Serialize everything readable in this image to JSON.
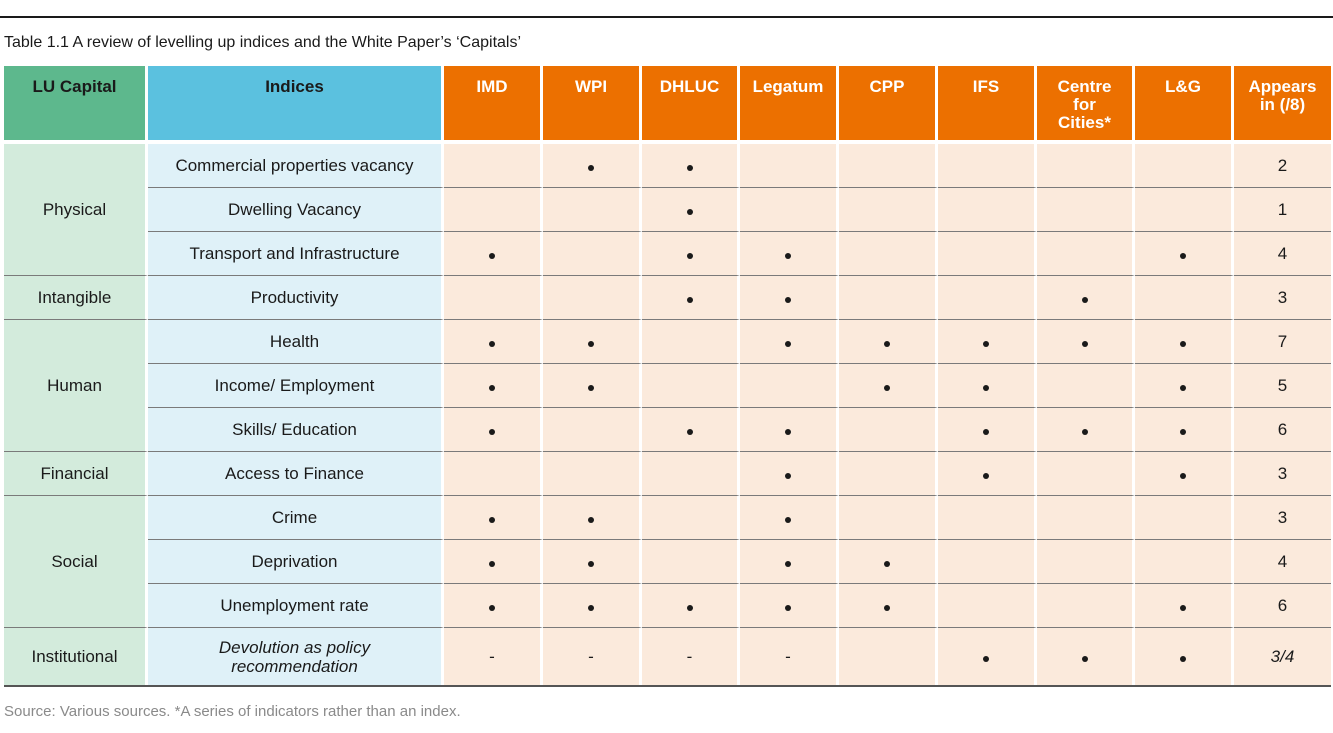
{
  "title": "Table 1.1 A review of levelling up indices and the White Paper’s ‘Capitals’",
  "headers": {
    "capital": "LU Capital",
    "indices": "Indices",
    "sources": [
      "IMD",
      "WPI",
      "DHLUC",
      "Legatum",
      "CPP",
      "IFS",
      "Centre for Cities*",
      "L&G"
    ],
    "appears": "Appears in (/8)"
  },
  "groups": [
    {
      "capital": "Physical",
      "rows": [
        {
          "index": "Commercial properties vacancy",
          "marks": [
            "",
            "•",
            "•",
            "",
            "",
            "",
            "",
            ""
          ],
          "count": "2"
        },
        {
          "index": "Dwelling Vacancy",
          "marks": [
            "",
            "",
            "•",
            "",
            "",
            "",
            "",
            ""
          ],
          "count": "1"
        },
        {
          "index": "Transport and Infrastructure",
          "marks": [
            "•",
            "",
            "•",
            "•",
            "",
            "",
            "",
            "•"
          ],
          "count": "4"
        }
      ]
    },
    {
      "capital": "Intangible",
      "rows": [
        {
          "index": "Productivity",
          "marks": [
            "",
            "",
            "•",
            "•",
            "",
            "",
            "•",
            ""
          ],
          "count": "3"
        }
      ]
    },
    {
      "capital": "Human",
      "rows": [
        {
          "index": "Health",
          "marks": [
            "•",
            "•",
            "",
            "•",
            "•",
            "•",
            "•",
            "•"
          ],
          "count": "7"
        },
        {
          "index": "Income/ Employment",
          "marks": [
            "•",
            "•",
            "",
            "",
            "•",
            "•",
            "",
            "•"
          ],
          "count": "5"
        },
        {
          "index": "Skills/ Education",
          "marks": [
            "•",
            "",
            "•",
            "•",
            "",
            "•",
            "•",
            "•"
          ],
          "count": "6"
        }
      ]
    },
    {
      "capital": "Financial",
      "rows": [
        {
          "index": "Access to Finance",
          "marks": [
            "",
            "",
            "",
            "•",
            "",
            "•",
            "",
            "•"
          ],
          "count": "3"
        }
      ]
    },
    {
      "capital": "Social",
      "rows": [
        {
          "index": "Crime",
          "marks": [
            "•",
            "•",
            "",
            "•",
            "",
            "",
            "",
            ""
          ],
          "count": "3"
        },
        {
          "index": "Deprivation",
          "marks": [
            "•",
            "•",
            "",
            "•",
            "•",
            "",
            "",
            ""
          ],
          "count": "4"
        },
        {
          "index": "Unemployment rate",
          "marks": [
            "•",
            "•",
            "•",
            "•",
            "•",
            "",
            "",
            "•"
          ],
          "count": "6"
        }
      ]
    },
    {
      "capital": "Institutional",
      "rows": [
        {
          "index": "Devolution as policy recommendation",
          "marks": [
            "-",
            "-",
            "-",
            "-",
            "",
            "•",
            "•",
            "•"
          ],
          "count": "3/4",
          "italic": true
        }
      ]
    }
  ],
  "source_note": "Source: Various sources. *A series of indicators rather than an index.",
  "colors": {
    "capital_header": "#5db88d",
    "indices_header": "#5bc1df",
    "source_header": "#ec7000",
    "capital_cell": "#d3ebdc",
    "indices_cell": "#dff1f8",
    "value_cell": "#fbeadc"
  }
}
